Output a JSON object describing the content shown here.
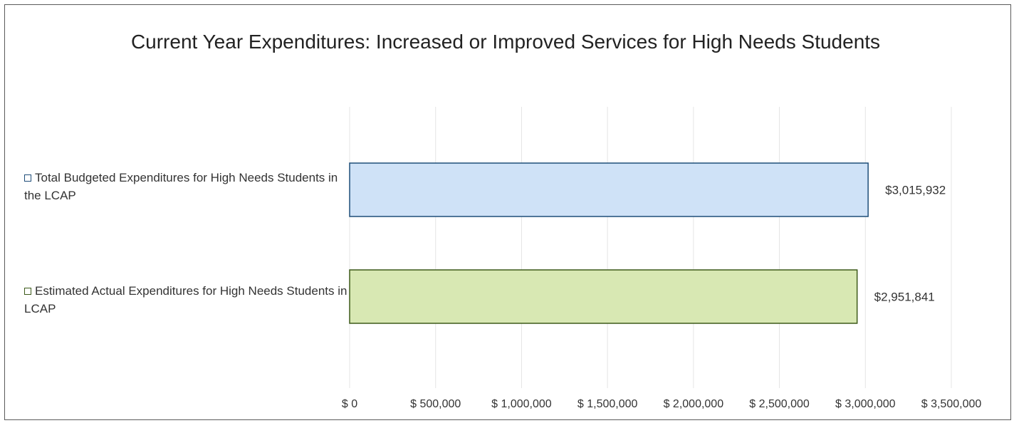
{
  "chart_data": {
    "type": "bar",
    "orientation": "horizontal",
    "title": "Current Year Expenditures: Increased or Improved Services for High Needs Students",
    "categories": [
      "Total Budgeted Expenditures for High Needs Students in the LCAP",
      "Estimated Actual Expenditures for High Needs Students in LCAP"
    ],
    "values": [
      3015932,
      2951841
    ],
    "value_labels": [
      "$3,015,932",
      "$2,951,841"
    ],
    "bar_colors": [
      "#cfe2f7",
      "#d8e8b3"
    ],
    "bar_border_colors": [
      "#1f4e79",
      "#3d5a1a"
    ],
    "xlim": [
      0,
      3500000
    ],
    "x_ticks": [
      0,
      500000,
      1000000,
      1500000,
      2000000,
      2500000,
      3000000,
      3500000
    ],
    "x_tick_labels": [
      "$ 0",
      "$ 500,000",
      "$ 1,000,000",
      "$ 1,500,000",
      "$ 2,000,000",
      "$ 2,500,000",
      "$ 3,000,000",
      "$ 3,500,000"
    ],
    "grid": true,
    "xlabel": "",
    "ylabel": ""
  }
}
